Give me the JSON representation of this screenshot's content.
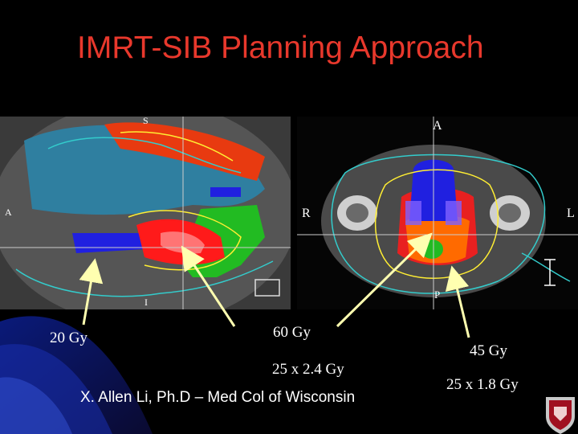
{
  "slide": {
    "title": "IMRT-SIB Planning Approach",
    "credit": "X. Allen Li, Ph.D – Med Col of Wisconsin"
  },
  "images": {
    "sagittal": {
      "letters": {
        "superior": "S",
        "anterior": "A",
        "inferior": "I"
      }
    },
    "axial": {
      "letters": {
        "anterior": "A",
        "right": "R",
        "left": "L",
        "posterior": "P"
      }
    }
  },
  "labels": {
    "dose_20": "20 Gy",
    "dose_60": "60 Gy",
    "fraction_60": "25 x 2.4 Gy",
    "dose_45": "45 Gy",
    "fraction_45": "25 x 1.8 Gy"
  },
  "colors": {
    "title": "#e8382c",
    "dose_20": "#3a8fb0",
    "dose_60": "#e82020",
    "dose_45": "#ff6a00",
    "boost": "#2020e0",
    "node": "#22bb22",
    "isodose": "#ffee33",
    "contour": "#33cccc",
    "arrow": "#ffffb0"
  }
}
